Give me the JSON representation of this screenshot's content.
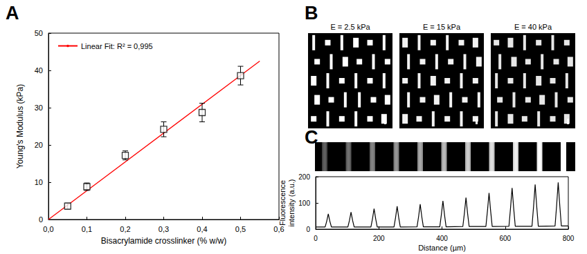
{
  "chart_data": [
    {
      "type": "scatter",
      "title": "A",
      "x_label": "Bisacrylamide crosslinker (% w/w)",
      "y_label": "Young's Modulus (kPa)",
      "xlim": [
        0,
        0.6
      ],
      "xticks": [
        {
          "value": 0,
          "label": "0,0"
        },
        {
          "value": 0.1,
          "label": "0,1"
        },
        {
          "value": 0.2,
          "label": "0,2"
        },
        {
          "value": 0.3,
          "label": "0,3"
        },
        {
          "value": 0.4,
          "label": "0,4"
        },
        {
          "value": 0.5,
          "label": "0,5"
        },
        {
          "value": 0.6,
          "label": "0,6"
        }
      ],
      "ylim": [
        0,
        50
      ],
      "yticks": [
        0,
        10,
        20,
        30,
        40,
        50
      ],
      "grid": false,
      "legend": "upper left",
      "series": [
        {
          "type": "scatter",
          "marker": "square",
          "color": "#000000",
          "x": [
            0.05,
            0.1,
            0.2,
            0.3,
            0.4,
            0.5
          ],
          "values": [
            3.6,
            8.8,
            17.2,
            24.2,
            28.7,
            38.6
          ],
          "errors": [
            0.8,
            1.0,
            1.2,
            2.0,
            2.5,
            2.5
          ]
        },
        {
          "type": "line",
          "name": "Linear Fit: R² = 0,995",
          "color": "#ff0000",
          "x": [
            0,
            0.55
          ],
          "values": [
            0,
            42.5
          ]
        }
      ]
    },
    {
      "type": "line",
      "title": "C",
      "x_label": "Distance (µm)",
      "y_label": "Fluorescence\nintensity (a.u.)",
      "xlim": [
        0,
        800
      ],
      "xticks": [
        0,
        200,
        400,
        600,
        800
      ],
      "ylim": [
        0,
        200
      ],
      "yticks": [
        0,
        100,
        200
      ],
      "grid": false,
      "series": [
        {
          "color": "#000000",
          "x": [
            0,
            30,
            35,
            40,
            45,
            50,
            102,
            107,
            112,
            117,
            122,
            175,
            180,
            185,
            190,
            195,
            248,
            253,
            258,
            263,
            268,
            321,
            326,
            331,
            336,
            341,
            393,
            398,
            403,
            408,
            413,
            466,
            471,
            476,
            481,
            486,
            539,
            544,
            549,
            554,
            559,
            612,
            617,
            622,
            627,
            632,
            685,
            690,
            695,
            700,
            705,
            758,
            763,
            768,
            773,
            778,
            800
          ],
          "values": [
            8,
            8,
            30,
            58,
            30,
            8,
            8,
            33,
            65,
            33,
            8,
            8,
            40,
            78,
            40,
            8,
            8,
            44,
            87,
            44,
            8,
            9,
            48,
            95,
            48,
            9,
            9,
            55,
            108,
            55,
            9,
            10,
            61,
            120,
            61,
            10,
            10,
            70,
            138,
            70,
            10,
            11,
            80,
            157,
            80,
            11,
            11,
            86,
            170,
            86,
            11,
            12,
            90,
            178,
            90,
            12,
            12
          ]
        }
      ]
    }
  ],
  "panel_b": {
    "title": "B",
    "images": [
      {
        "label": "E = 2.5 kPa"
      },
      {
        "label": "E = 15 kPa"
      },
      {
        "label": "E = 40 kPa"
      }
    ]
  }
}
